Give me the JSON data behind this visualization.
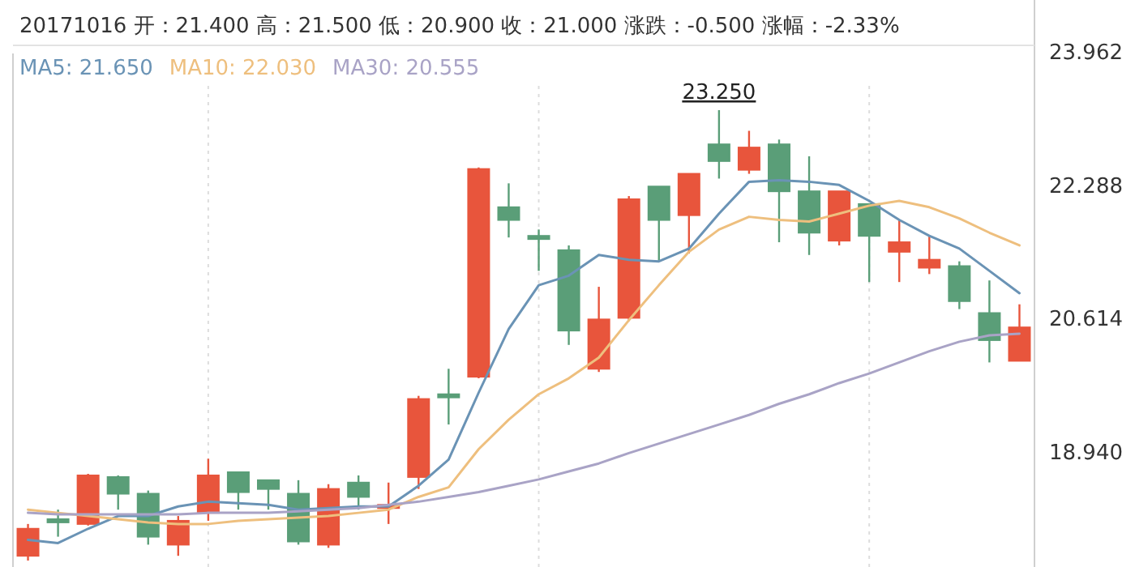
{
  "chart_data": {
    "type": "candlestick",
    "title": "20171016 开：21.400 高：21.500 低：20.900 收：21.000 涨跌：-0.500 涨幅：-2.33%",
    "categories": [
      null,
      null,
      null,
      null,
      null,
      null,
      null,
      null,
      null,
      null,
      null,
      null,
      null,
      null,
      null,
      null,
      null,
      null,
      null,
      null,
      null,
      null,
      null,
      null,
      null,
      null,
      null,
      null,
      null,
      null,
      null,
      null,
      null,
      null
    ],
    "ohlc": [
      [
        17.65,
        18.05,
        17.59,
        17.99
      ],
      [
        18.11,
        18.23,
        17.89,
        18.07
      ],
      [
        18.05,
        18.68,
        18.03,
        18.66
      ],
      [
        18.64,
        18.66,
        18.23,
        18.43
      ],
      [
        18.43,
        18.47,
        17.79,
        17.89
      ],
      [
        17.79,
        18.15,
        17.65,
        18.09
      ],
      [
        18.19,
        18.87,
        18.09,
        18.66
      ],
      [
        18.7,
        18.7,
        18.23,
        18.45
      ],
      [
        18.6,
        18.6,
        18.23,
        18.49
      ],
      [
        18.43,
        18.6,
        17.79,
        17.83
      ],
      [
        17.79,
        18.55,
        17.75,
        18.49
      ],
      [
        18.57,
        18.66,
        18.23,
        18.39
      ],
      [
        18.25,
        18.57,
        18.05,
        18.29
      ],
      [
        18.64,
        19.66,
        18.49,
        19.62
      ],
      [
        19.68,
        20.0,
        19.3,
        19.64
      ],
      [
        19.9,
        22.53,
        19.88,
        22.51
      ],
      [
        22.03,
        22.33,
        21.65,
        21.87
      ],
      [
        21.67,
        21.75,
        21.23,
        21.63
      ],
      [
        21.49,
        21.55,
        20.3,
        20.48
      ],
      [
        20.0,
        21.03,
        19.96,
        20.62
      ],
      [
        20.64,
        22.17,
        20.6,
        22.13
      ],
      [
        22.29,
        22.29,
        21.35,
        21.87
      ],
      [
        21.93,
        22.45,
        21.45,
        22.45
      ],
      [
        22.82,
        23.25,
        22.39,
        22.61
      ],
      [
        22.5,
        22.99,
        22.45,
        22.78
      ],
      [
        22.82,
        22.88,
        21.59,
        22.23
      ],
      [
        22.23,
        22.67,
        21.43,
        21.71
      ],
      [
        21.61,
        22.23,
        21.55,
        22.23
      ],
      [
        22.07,
        22.07,
        21.09,
        21.67
      ],
      [
        21.47,
        21.87,
        21.09,
        21.59
      ],
      [
        21.27,
        21.67,
        21.19,
        21.37
      ],
      [
        21.29,
        21.35,
        20.75,
        20.85
      ],
      [
        20.7,
        21.11,
        20.08,
        20.36
      ],
      [
        20.1,
        20.81,
        20.1,
        20.52
      ]
    ],
    "colors": [
      "#e8553c",
      "#5a9e78",
      "#e8553c",
      "#5a9e78",
      "#5a9e78",
      "#e8553c",
      "#e8553c",
      "#5a9e78",
      "#5a9e78",
      "#5a9e78",
      "#e8553c",
      "#5a9e78",
      "#e8553c",
      "#e8553c",
      "#5a9e78",
      "#e8553c",
      "#5a9e78",
      "#5a9e78",
      "#5a9e78",
      "#e8553c",
      "#e8553c",
      "#5a9e78",
      "#e8553c",
      "#5a9e78",
      "#e8553c",
      "#5a9e78",
      "#5a9e78",
      "#e8553c",
      "#5a9e78",
      "#e8553c",
      "#e8553c",
      "#5a9e78",
      "#5a9e78",
      "#e8553c"
    ],
    "series": [
      {
        "type": "line",
        "name": "MA5: 21.650",
        "color": "#6a93b5",
        "values": [
          17.85,
          17.81,
          17.99,
          18.15,
          18.15,
          18.27,
          18.33,
          18.31,
          18.29,
          18.23,
          18.25,
          18.27,
          18.27,
          18.53,
          18.86,
          19.7,
          20.5,
          21.05,
          21.17,
          21.43,
          21.37,
          21.35,
          21.51,
          21.95,
          22.35,
          22.37,
          22.35,
          22.31,
          22.11,
          21.87,
          21.67,
          21.51,
          21.23,
          20.95
        ]
      },
      {
        "type": "line",
        "name": "MA10: 22.030",
        "color": "#eebf7e",
        "values": [
          18.23,
          18.19,
          18.15,
          18.11,
          18.07,
          18.05,
          18.05,
          18.09,
          18.11,
          18.13,
          18.15,
          18.19,
          18.23,
          18.39,
          18.51,
          18.99,
          19.36,
          19.68,
          19.88,
          20.14,
          20.61,
          21.05,
          21.47,
          21.75,
          21.91,
          21.87,
          21.85,
          21.95,
          22.05,
          22.11,
          22.03,
          21.89,
          21.71,
          21.55
        ]
      },
      {
        "type": "line",
        "name": "MA30: 20.555",
        "color": "#a9a3c6",
        "values": [
          18.19,
          18.17,
          18.17,
          18.17,
          18.17,
          18.17,
          18.19,
          18.19,
          18.19,
          18.21,
          18.23,
          18.25,
          18.29,
          18.33,
          18.39,
          18.45,
          18.53,
          18.61,
          18.71,
          18.81,
          18.94,
          19.06,
          19.18,
          19.3,
          19.42,
          19.56,
          19.68,
          19.82,
          19.94,
          20.08,
          20.22,
          20.34,
          20.42,
          20.44
        ]
      }
    ],
    "annotations": [
      {
        "text": "23.250",
        "y": 23.25
      }
    ],
    "ylim": [
      17.55,
      23.962
    ],
    "yticks": [
      {
        "value": 18.94,
        "label": "18.940"
      },
      20.614,
      22.288,
      23.962
    ],
    "grid": "x",
    "tick_labels": "y",
    "legend": "top left"
  }
}
